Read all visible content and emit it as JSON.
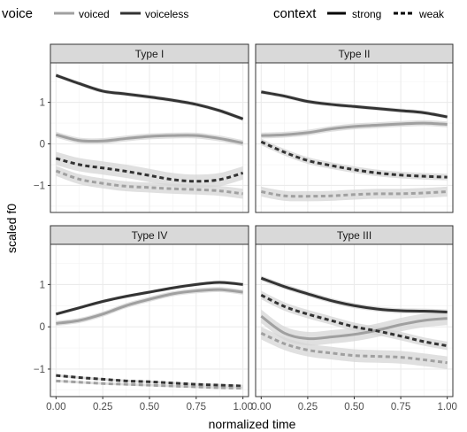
{
  "chart_data": {
    "type": "line",
    "xlabel": "normalized time",
    "ylabel": "scaled f0",
    "xlim": [
      -0.03,
      1.03
    ],
    "ylim": [
      -1.65,
      1.95
    ],
    "x_ticks": [
      0,
      0.25,
      0.5,
      0.75,
      1
    ],
    "x_tick_labels": [
      "0.00",
      "0.25",
      "0.50",
      "0.75",
      "1.00"
    ],
    "y_ticks": [
      -1,
      0,
      1
    ],
    "y_tick_labels": [
      "−1",
      "0",
      "1"
    ],
    "legend": {
      "position": "top",
      "voice": {
        "title": "voice",
        "items": [
          {
            "label": "voiced",
            "color": "#a0a0a0"
          },
          {
            "label": "voiceless",
            "color": "#333333"
          }
        ]
      },
      "context": {
        "title": "context",
        "items": [
          {
            "label": "strong",
            "linetype": "solid"
          },
          {
            "label": "weak",
            "linetype": "dashed"
          }
        ]
      }
    },
    "colors": {
      "voiced": "#a0a0a0",
      "voiceless": "#333333",
      "ribbon": "#d6d6d6",
      "strip": "#d9d9d9",
      "grid": "#ebebeb"
    },
    "panels": [
      {
        "title": "Type I",
        "series": [
          {
            "voice": "voiceless",
            "context": "strong",
            "x": [
              0,
              0.125,
              0.25,
              0.375,
              0.5,
              0.625,
              0.75,
              0.875,
              1
            ],
            "y": [
              1.65,
              1.45,
              1.27,
              1.2,
              1.13,
              1.05,
              0.95,
              0.8,
              0.6
            ],
            "band": 0.05
          },
          {
            "voice": "voiced",
            "context": "strong",
            "x": [
              0,
              0.125,
              0.25,
              0.375,
              0.5,
              0.625,
              0.75,
              0.875,
              1
            ],
            "y": [
              0.22,
              0.08,
              0.07,
              0.13,
              0.18,
              0.2,
              0.2,
              0.13,
              0.02
            ],
            "band": 0.07
          },
          {
            "voice": "voiceless",
            "context": "weak",
            "x": [
              0,
              0.125,
              0.25,
              0.375,
              0.5,
              0.625,
              0.75,
              0.875,
              1
            ],
            "y": [
              -0.35,
              -0.5,
              -0.58,
              -0.66,
              -0.76,
              -0.86,
              -0.9,
              -0.86,
              -0.7
            ],
            "band": 0.16
          },
          {
            "voice": "voiced",
            "context": "weak",
            "x": [
              0,
              0.125,
              0.25,
              0.375,
              0.5,
              0.625,
              0.75,
              0.875,
              1
            ],
            "y": [
              -0.65,
              -0.85,
              -0.95,
              -1.02,
              -1.05,
              -1.08,
              -1.1,
              -1.13,
              -1.2
            ],
            "band": 0.12
          }
        ]
      },
      {
        "title": "Type II",
        "series": [
          {
            "voice": "voiceless",
            "context": "strong",
            "x": [
              0,
              0.125,
              0.25,
              0.375,
              0.5,
              0.625,
              0.75,
              0.875,
              1
            ],
            "y": [
              1.25,
              1.15,
              1.02,
              0.95,
              0.9,
              0.85,
              0.8,
              0.75,
              0.65
            ],
            "band": 0.05
          },
          {
            "voice": "voiced",
            "context": "strong",
            "x": [
              0,
              0.125,
              0.25,
              0.375,
              0.5,
              0.625,
              0.75,
              0.875,
              1
            ],
            "y": [
              0.2,
              0.22,
              0.27,
              0.36,
              0.42,
              0.45,
              0.48,
              0.5,
              0.47
            ],
            "band": 0.07
          },
          {
            "voice": "voiceless",
            "context": "weak",
            "x": [
              0,
              0.125,
              0.25,
              0.375,
              0.5,
              0.625,
              0.75,
              0.875,
              1
            ],
            "y": [
              0.05,
              -0.2,
              -0.4,
              -0.52,
              -0.62,
              -0.7,
              -0.75,
              -0.78,
              -0.8
            ],
            "band": 0.08
          },
          {
            "voice": "voiced",
            "context": "weak",
            "x": [
              0,
              0.125,
              0.25,
              0.375,
              0.5,
              0.625,
              0.75,
              0.875,
              1
            ],
            "y": [
              -1.15,
              -1.25,
              -1.26,
              -1.25,
              -1.22,
              -1.2,
              -1.2,
              -1.18,
              -1.15
            ],
            "band": 0.12
          }
        ]
      },
      {
        "title": "Type IV",
        "series": [
          {
            "voice": "voiceless",
            "context": "strong",
            "x": [
              0,
              0.125,
              0.25,
              0.375,
              0.5,
              0.625,
              0.75,
              0.875,
              1
            ],
            "y": [
              0.3,
              0.45,
              0.6,
              0.72,
              0.82,
              0.92,
              1.0,
              1.05,
              1.0
            ],
            "band": 0.04
          },
          {
            "voice": "voiced",
            "context": "strong",
            "x": [
              0,
              0.125,
              0.25,
              0.375,
              0.5,
              0.625,
              0.75,
              0.875,
              1
            ],
            "y": [
              0.08,
              0.15,
              0.3,
              0.5,
              0.65,
              0.78,
              0.85,
              0.88,
              0.82
            ],
            "band": 0.06
          },
          {
            "voice": "voiceless",
            "context": "weak",
            "x": [
              0,
              0.125,
              0.25,
              0.375,
              0.5,
              0.625,
              0.75,
              0.875,
              1
            ],
            "y": [
              -1.15,
              -1.2,
              -1.24,
              -1.28,
              -1.3,
              -1.33,
              -1.36,
              -1.38,
              -1.4
            ],
            "band": 0.03
          },
          {
            "voice": "voiced",
            "context": "weak",
            "x": [
              0,
              0.125,
              0.25,
              0.375,
              0.5,
              0.625,
              0.75,
              0.875,
              1
            ],
            "y": [
              -1.28,
              -1.31,
              -1.34,
              -1.36,
              -1.38,
              -1.4,
              -1.42,
              -1.44,
              -1.45
            ],
            "band": 0.03
          }
        ]
      },
      {
        "title": "Type III",
        "series": [
          {
            "voice": "voiceless",
            "context": "strong",
            "x": [
              0,
              0.125,
              0.25,
              0.375,
              0.5,
              0.625,
              0.75,
              0.875,
              1
            ],
            "y": [
              1.15,
              0.95,
              0.78,
              0.62,
              0.5,
              0.42,
              0.38,
              0.37,
              0.35
            ],
            "band": 0.06
          },
          {
            "voice": "voiced",
            "context": "strong",
            "x": [
              0,
              0.125,
              0.25,
              0.375,
              0.5,
              0.625,
              0.75,
              0.875,
              1
            ],
            "y": [
              0.25,
              -0.15,
              -0.28,
              -0.24,
              -0.18,
              -0.08,
              0.05,
              0.15,
              0.2
            ],
            "band": 0.16
          },
          {
            "voice": "voiceless",
            "context": "weak",
            "x": [
              0,
              0.125,
              0.25,
              0.375,
              0.5,
              0.625,
              0.75,
              0.875,
              1
            ],
            "y": [
              0.75,
              0.48,
              0.3,
              0.15,
              0.0,
              -0.1,
              -0.22,
              -0.35,
              -0.45
            ],
            "band": 0.1
          },
          {
            "voice": "voiced",
            "context": "weak",
            "x": [
              0,
              0.125,
              0.25,
              0.375,
              0.5,
              0.625,
              0.75,
              0.875,
              1
            ],
            "y": [
              -0.15,
              -0.4,
              -0.55,
              -0.62,
              -0.68,
              -0.7,
              -0.72,
              -0.78,
              -0.85
            ],
            "band": 0.15
          }
        ]
      }
    ]
  }
}
